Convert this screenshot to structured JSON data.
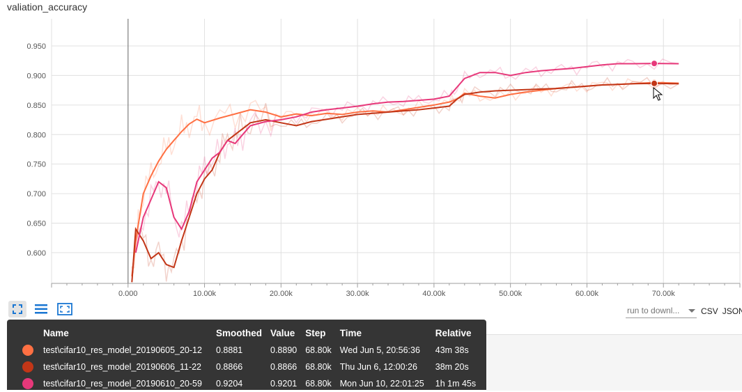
{
  "chart_title": "valiation_accuracy",
  "colors": {
    "run1": "#ff7043",
    "run2": "#c23617",
    "run3": "#e7387a",
    "grid": "#e0e0e0",
    "axis": "#9e9e9e"
  },
  "chart_data": {
    "type": "line",
    "title": "valiation_accuracy",
    "xlabel": "",
    "ylabel": "",
    "x_ticks": [
      "0.000",
      "10.00k",
      "20.00k",
      "30.00k",
      "40.00k",
      "50.00k",
      "60.00k",
      "70.00k"
    ],
    "y_ticks": [
      "0.600",
      "0.650",
      "0.700",
      "0.750",
      "0.800",
      "0.850",
      "0.900",
      "0.950"
    ],
    "xlim": [
      -10000,
      80000
    ],
    "ylim": [
      0.548,
      0.996
    ],
    "grid": true,
    "series": [
      {
        "name": "test\\cifar10_res_model_20190605_20-12",
        "color": "#ff7043",
        "x": [
          500,
          1000,
          1500,
          2000,
          3000,
          4000,
          5000,
          6000,
          7000,
          8000,
          9000,
          10000,
          12000,
          14000,
          16000,
          18000,
          20000,
          22000,
          24000,
          26000,
          28000,
          30000,
          32000,
          34000,
          36000,
          38000,
          40000,
          42000,
          43000,
          44000,
          46000,
          48000,
          50000,
          52000,
          54000,
          56000,
          58000,
          60000,
          62000,
          64000,
          66000,
          68800,
          72000
        ],
        "y": [
          0.56,
          0.62,
          0.66,
          0.7,
          0.73,
          0.755,
          0.775,
          0.79,
          0.805,
          0.818,
          0.826,
          0.82,
          0.828,
          0.835,
          0.842,
          0.838,
          0.83,
          0.835,
          0.832,
          0.836,
          0.834,
          0.838,
          0.84,
          0.838,
          0.842,
          0.846,
          0.85,
          0.855,
          0.86,
          0.87,
          0.865,
          0.862,
          0.868,
          0.872,
          0.875,
          0.878,
          0.88,
          0.882,
          0.884,
          0.885,
          0.886,
          0.8881,
          0.887
        ]
      },
      {
        "name": "test\\cifar10_res_model_20190606_11-22",
        "color": "#c23617",
        "x": [
          500,
          1000,
          2000,
          3000,
          4000,
          5000,
          6000,
          7000,
          8000,
          9000,
          10000,
          11000,
          12000,
          13000,
          14000,
          15000,
          16000,
          18000,
          20000,
          22000,
          24000,
          26000,
          28000,
          30000,
          32000,
          34000,
          36000,
          38000,
          40000,
          42000,
          43000,
          44000,
          46000,
          48000,
          50000,
          52000,
          54000,
          56000,
          58000,
          60000,
          62000,
          64000,
          66000,
          68800,
          72000
        ],
        "y": [
          0.55,
          0.64,
          0.62,
          0.59,
          0.6,
          0.58,
          0.575,
          0.62,
          0.66,
          0.7,
          0.725,
          0.74,
          0.77,
          0.79,
          0.8,
          0.81,
          0.82,
          0.825,
          0.82,
          0.815,
          0.822,
          0.826,
          0.83,
          0.834,
          0.836,
          0.838,
          0.84,
          0.842,
          0.845,
          0.848,
          0.86,
          0.868,
          0.872,
          0.874,
          0.875,
          0.876,
          0.877,
          0.878,
          0.88,
          0.882,
          0.884,
          0.885,
          0.886,
          0.8866,
          0.886
        ]
      },
      {
        "name": "test\\cifar10_res_model_20190610_20-59",
        "color": "#e7387a",
        "x": [
          1000,
          2000,
          3000,
          4000,
          5000,
          6000,
          7000,
          8000,
          9000,
          10000,
          11000,
          12000,
          13000,
          14000,
          15000,
          16000,
          18000,
          20000,
          22000,
          24000,
          26000,
          28000,
          30000,
          32000,
          34000,
          36000,
          38000,
          40000,
          42000,
          43000,
          44000,
          46000,
          48000,
          50000,
          52000,
          54000,
          56000,
          58000,
          60000,
          62000,
          64000,
          66000,
          68800,
          72000
        ],
        "y": [
          0.6,
          0.66,
          0.69,
          0.72,
          0.71,
          0.66,
          0.64,
          0.67,
          0.72,
          0.74,
          0.76,
          0.77,
          0.79,
          0.785,
          0.8,
          0.815,
          0.822,
          0.825,
          0.83,
          0.838,
          0.842,
          0.845,
          0.848,
          0.852,
          0.855,
          0.856,
          0.858,
          0.86,
          0.865,
          0.88,
          0.895,
          0.905,
          0.905,
          0.9,
          0.905,
          0.908,
          0.91,
          0.912,
          0.915,
          0.918,
          0.92,
          0.92,
          0.9204,
          0.92
        ]
      }
    ]
  },
  "toolbar": {
    "icons": [
      "fit-domain-icon",
      "log-scale-icon",
      "expand-icon"
    ]
  },
  "download": {
    "select_label": "run to downl...",
    "csv": "CSV",
    "json": "JSON"
  },
  "tooltip": {
    "headers": {
      "name": "Name",
      "smoothed": "Smoothed",
      "value": "Value",
      "step": "Step",
      "time": "Time",
      "relative": "Relative"
    },
    "rows": [
      {
        "name": "test\\cifar10_res_model_20190605_20-12",
        "smoothed": "0.8881",
        "value": "0.8890",
        "step": "68.80k",
        "time": "Wed Jun 5, 20:56:36",
        "relative": "43m 38s"
      },
      {
        "name": "test\\cifar10_res_model_20190606_11-22",
        "smoothed": "0.8866",
        "value": "0.8866",
        "step": "68.80k",
        "time": "Thu Jun 6, 12:00:26",
        "relative": "38m 20s"
      },
      {
        "name": "test\\cifar10_res_model_20190610_20-59",
        "smoothed": "0.9204",
        "value": "0.9201",
        "step": "68.80k",
        "time": "Mon Jun 10, 22:01:25",
        "relative": "1h 1m 45s"
      }
    ]
  }
}
